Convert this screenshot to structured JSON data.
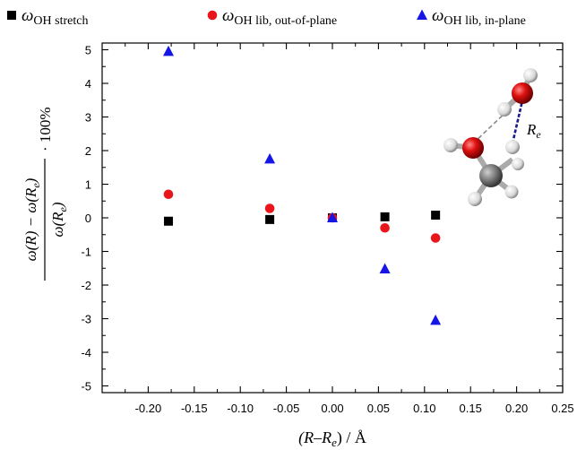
{
  "chart_data": {
    "type": "scatter",
    "xlabel": "(R–R_e) / Å",
    "ylabel": "(ω(R) − ω(R_e)) / ω(R_e) · 100%",
    "xlim": [
      -0.25,
      0.25
    ],
    "ylim": [
      -5.2,
      5.2
    ],
    "x_ticks": [
      -0.2,
      -0.15,
      -0.1,
      -0.05,
      0.0,
      0.05,
      0.1,
      0.15,
      0.2,
      0.25
    ],
    "x_tick_labels": [
      "-0.20",
      "-0.15",
      "-0.10",
      "-0.05",
      "0.00",
      "0.05",
      "0.10",
      "0.15",
      "0.20",
      "0.25"
    ],
    "y_ticks": [
      -5,
      -4,
      -3,
      -2,
      -1,
      0,
      1,
      2,
      3,
      4,
      5
    ],
    "y_tick_labels": [
      "-5",
      "-4",
      "-3",
      "-2",
      "-1",
      "0",
      "1",
      "2",
      "3",
      "4",
      "5"
    ],
    "grid": false,
    "legend_position": "top",
    "series": [
      {
        "name": "ωOH stretch",
        "base": "ω",
        "sub": "OH stretch",
        "marker": "square",
        "color": "#000000",
        "x": [
          -0.178,
          -0.068,
          0.0,
          0.057,
          0.112
        ],
        "y": [
          -0.1,
          -0.05,
          0.0,
          0.03,
          0.08
        ]
      },
      {
        "name": "ωOH lib, out-of-plane",
        "base": "ω",
        "sub": "OH lib, out-of-plane",
        "marker": "circle",
        "color": "#e8161b",
        "x": [
          -0.178,
          -0.068,
          0.0,
          0.057,
          0.112
        ],
        "y": [
          0.7,
          0.28,
          0.0,
          -0.3,
          -0.6
        ]
      },
      {
        "name": "ωOH lib, in-plane",
        "base": "ω",
        "sub": "OH lib, in-plane",
        "marker": "triangle",
        "color": "#1515e6",
        "x": [
          -0.178,
          -0.068,
          0.0,
          0.057,
          0.112
        ],
        "y": [
          4.95,
          1.75,
          0.0,
          -1.52,
          -3.05
        ]
      }
    ],
    "annotations": [
      {
        "text": "R_e",
        "base": "R",
        "sub": "e"
      }
    ]
  },
  "ylabel_parts": {
    "num": "ω(R) − ω(R",
    "num_sub": "e",
    "num_end": ")",
    "den": "ω(R",
    "den_sub": "e",
    "den_end": ")",
    "suffix": "· 100%"
  },
  "xlabel_parts": {
    "pre": "(R–R",
    "sub": "e",
    "post": ")  /  Å"
  }
}
